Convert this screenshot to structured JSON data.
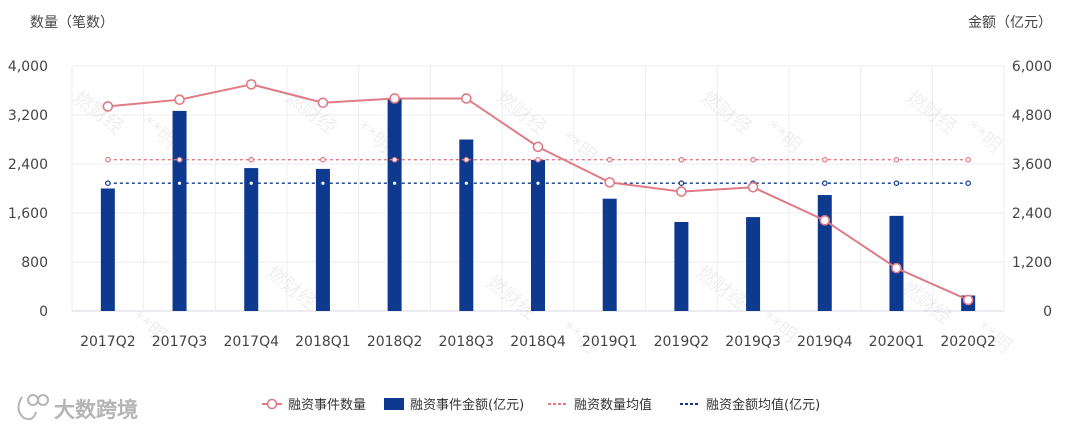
{
  "chart_data": {
    "type": "bar",
    "categories": [
      "2017Q2",
      "2017Q3",
      "2017Q4",
      "2018Q1",
      "2018Q2",
      "2018Q3",
      "2018Q4",
      "2019Q1",
      "2019Q2",
      "2019Q3",
      "2019Q4",
      "2020Q1",
      "2020Q2"
    ],
    "left_axis": {
      "title": "数量（笔数）",
      "ylim": [
        0,
        4000
      ],
      "ticks": [
        "0",
        "800",
        "1,600",
        "2,400",
        "3,200",
        "4,000"
      ],
      "tick_values": [
        0,
        800,
        1600,
        2400,
        3200,
        4000
      ]
    },
    "right_axis": {
      "title": "金额（亿元）",
      "ylim": [
        0,
        6000
      ],
      "ticks": [
        "0",
        "1,200",
        "2,400",
        "3,600",
        "4,800",
        "6,000"
      ],
      "tick_values": [
        0,
        1200,
        2400,
        3600,
        4800,
        6000
      ]
    },
    "series": [
      {
        "name": "融资事件数量",
        "type": "line",
        "axis": "left",
        "color": "#e07b86",
        "values": [
          3340,
          3450,
          3700,
          3400,
          3470,
          3470,
          2680,
          2100,
          1950,
          2020,
          1480,
          700,
          180
        ]
      },
      {
        "name": "融资事件金额(亿元)",
        "type": "bar",
        "axis": "right",
        "color": "#0d3a8f",
        "values": [
          3000,
          4900,
          3500,
          3480,
          5200,
          4200,
          3700,
          2750,
          2180,
          2300,
          2840,
          2330,
          380
        ]
      },
      {
        "name": "融资数量均值",
        "type": "dashed-line",
        "axis": "left",
        "color": "#e07b86",
        "value": 2470
      },
      {
        "name": "融资金额均值(亿元)",
        "type": "dashed-line",
        "axis": "right",
        "color": "#0d3a8f",
        "value": 3130
      }
    ],
    "legend_position": "bottom-center",
    "grid": true
  },
  "watermark": {
    "brand": "大数跨境",
    "texts": [
      "燃财经",
      "**明"
    ]
  }
}
